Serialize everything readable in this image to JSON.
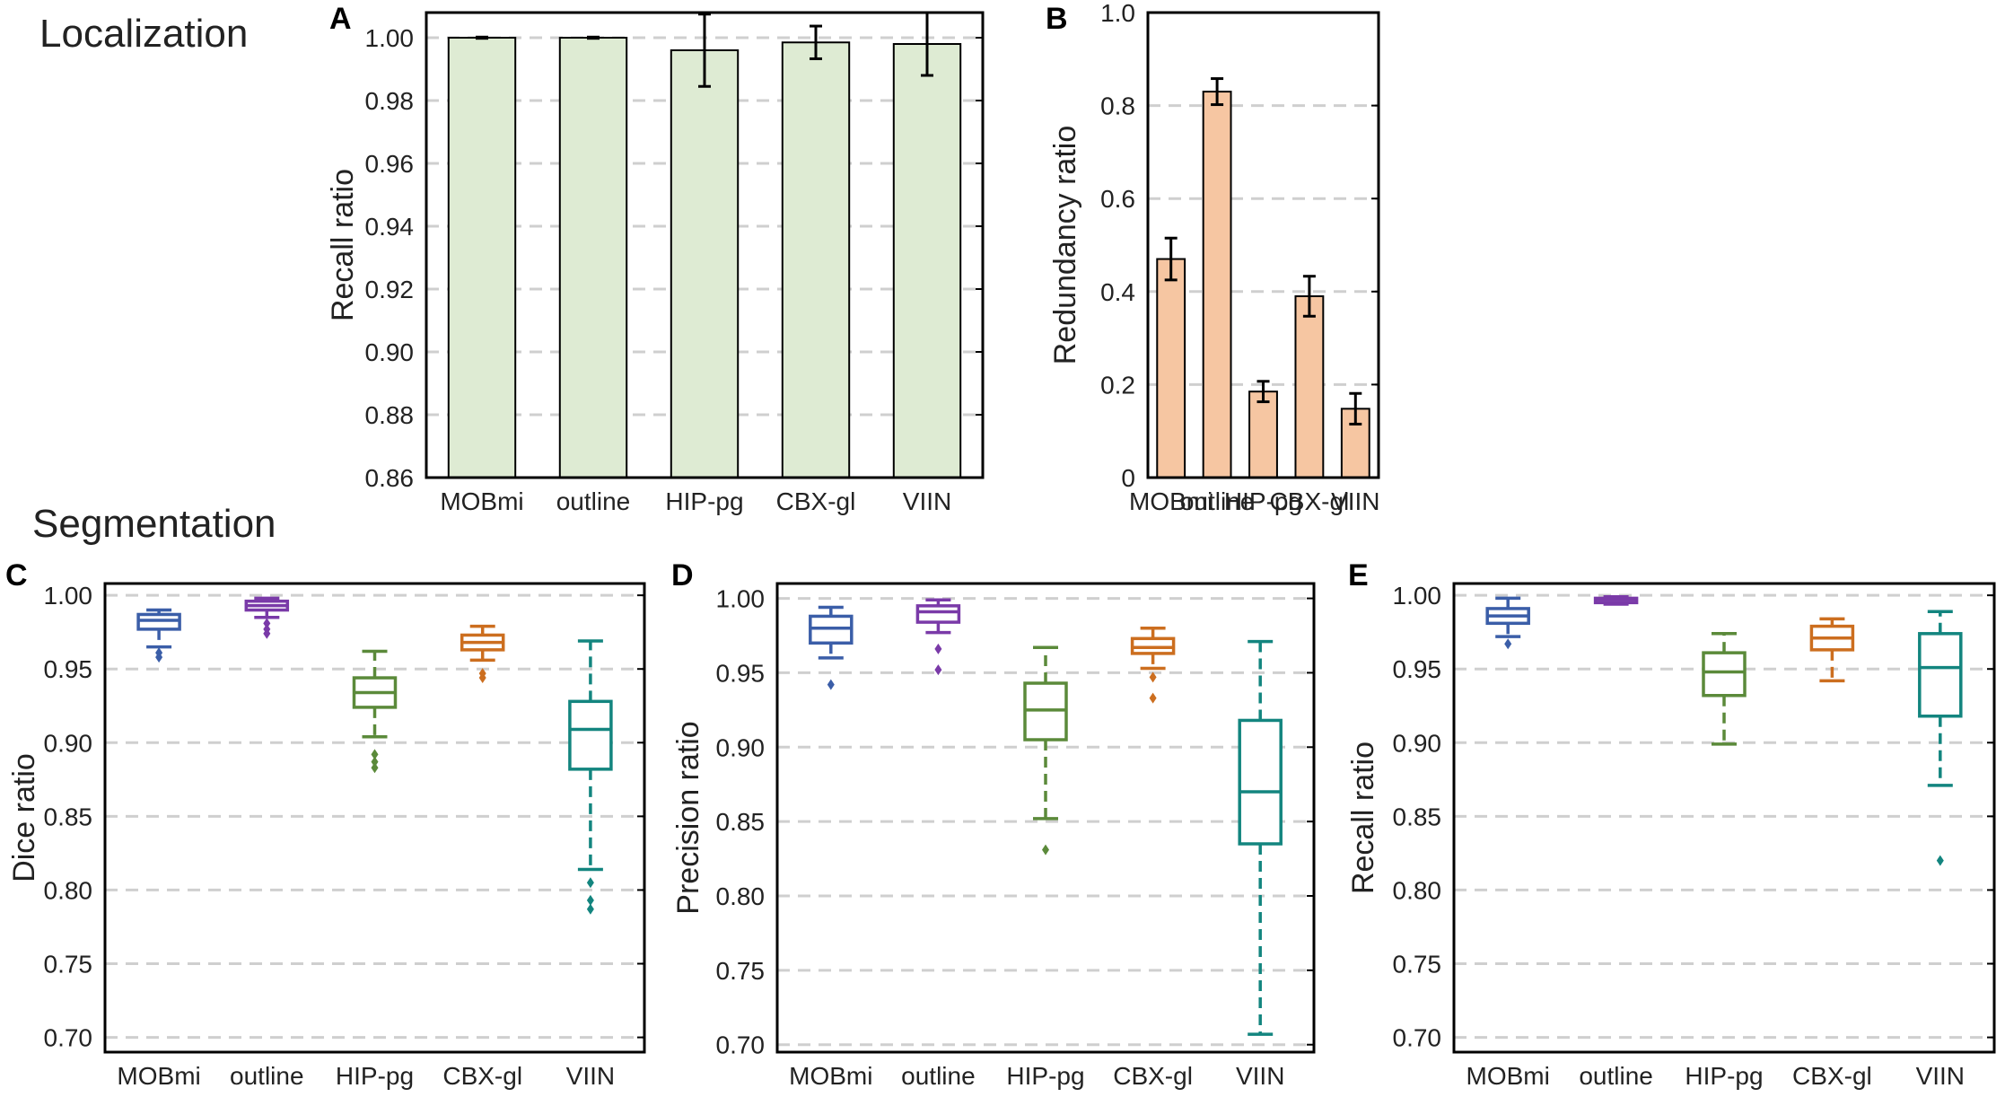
{
  "sections": {
    "localization": "Localization",
    "segmentation": "Segmentation"
  },
  "colors": {
    "bar_green": "#deebd3",
    "bar_orange": "#f6c6a2",
    "grid": "#cfcfcf",
    "mobmi": "#3b5ea8",
    "outline": "#7a3aa8",
    "hip": "#5b8a3a",
    "cbx": "#cc6e1f",
    "viin": "#13857f"
  },
  "chart_data": [
    {
      "id": "A",
      "panel_label": "A",
      "type": "bar",
      "title": "",
      "xlabel": "",
      "ylabel": "Recall ratio",
      "categories": [
        "MOBmi",
        "outline",
        "HIP-pg",
        "CBX-gl",
        "VIIN"
      ],
      "values": [
        1.0,
        1.0,
        0.996,
        0.9985,
        0.998
      ],
      "errors": [
        0.0002,
        0.0002,
        0.0115,
        0.0052,
        0.01
      ],
      "ylim": [
        0.86,
        1.008
      ],
      "yticks": [
        0.86,
        0.88,
        0.9,
        0.92,
        0.94,
        0.96,
        0.98,
        1.0
      ],
      "ytick_labels": [
        "0.86",
        "0.88",
        "0.90",
        "0.92",
        "0.94",
        "0.96",
        "0.98",
        "1.00"
      ],
      "grid": "horizontal dashed",
      "bar_color": "#deebd3"
    },
    {
      "id": "B",
      "panel_label": "B",
      "type": "bar",
      "title": "",
      "xlabel": "",
      "ylabel": "Redundancy ratio",
      "categories": [
        "MOBmi",
        "outline",
        "HIP-pg",
        "CBX-gl",
        "VIIN"
      ],
      "values": [
        0.47,
        0.83,
        0.185,
        0.39,
        0.148
      ],
      "errors": [
        0.045,
        0.028,
        0.022,
        0.043,
        0.033
      ],
      "ylim": [
        0,
        1.0
      ],
      "yticks": [
        0,
        0.2,
        0.4,
        0.6,
        0.8,
        1.0
      ],
      "ytick_labels": [
        "0",
        "0.2",
        "0.4",
        "0.6",
        "0.8",
        "1.0"
      ],
      "grid": "horizontal dashed",
      "bar_color": "#f6c6a2"
    },
    {
      "id": "C",
      "panel_label": "C",
      "type": "box",
      "title": "",
      "xlabel": "",
      "ylabel": "Dice ratio",
      "categories": [
        "MOBmi",
        "outline",
        "HIP-pg",
        "CBX-gl",
        "VIIN"
      ],
      "colors": [
        "#3b5ea8",
        "#7a3aa8",
        "#5b8a3a",
        "#cc6e1f",
        "#13857f"
      ],
      "boxes": [
        {
          "whislo": 0.965,
          "q1": 0.977,
          "med": 0.983,
          "q3": 0.987,
          "whishi": 0.99,
          "fliers": [
            0.961,
            0.958
          ]
        },
        {
          "whislo": 0.985,
          "q1": 0.99,
          "med": 0.993,
          "q3": 0.996,
          "whishi": 0.998,
          "fliers": [
            0.981,
            0.977,
            0.974
          ]
        },
        {
          "whislo": 0.904,
          "q1": 0.924,
          "med": 0.934,
          "q3": 0.944,
          "whishi": 0.962,
          "fliers": [
            0.892,
            0.887,
            0.883
          ]
        },
        {
          "whislo": 0.956,
          "q1": 0.963,
          "med": 0.968,
          "q3": 0.973,
          "whishi": 0.979,
          "fliers": [
            0.947,
            0.944
          ]
        },
        {
          "whislo": 0.814,
          "q1": 0.882,
          "med": 0.909,
          "q3": 0.928,
          "whishi": 0.969,
          "fliers": [
            0.805,
            0.793,
            0.787
          ]
        }
      ],
      "ylim": [
        0.69,
        1.008
      ],
      "yticks": [
        0.7,
        0.75,
        0.8,
        0.85,
        0.9,
        0.95,
        1.0
      ],
      "ytick_labels": [
        "0.70",
        "0.75",
        "0.80",
        "0.85",
        "0.90",
        "0.95",
        "1.00"
      ],
      "grid": "horizontal dashed"
    },
    {
      "id": "D",
      "panel_label": "D",
      "type": "box",
      "title": "",
      "xlabel": "",
      "ylabel": "Precision ratio",
      "categories": [
        "MOBmi",
        "outline",
        "HIP-pg",
        "CBX-gl",
        "VIIN"
      ],
      "colors": [
        "#3b5ea8",
        "#7a3aa8",
        "#5b8a3a",
        "#cc6e1f",
        "#13857f"
      ],
      "boxes": [
        {
          "whislo": 0.96,
          "q1": 0.97,
          "med": 0.98,
          "q3": 0.988,
          "whishi": 0.994,
          "fliers": [
            0.942
          ]
        },
        {
          "whislo": 0.977,
          "q1": 0.984,
          "med": 0.991,
          "q3": 0.995,
          "whishi": 0.999,
          "fliers": [
            0.966,
            0.952
          ]
        },
        {
          "whislo": 0.852,
          "q1": 0.905,
          "med": 0.925,
          "q3": 0.943,
          "whishi": 0.967,
          "fliers": [
            0.831
          ]
        },
        {
          "whislo": 0.953,
          "q1": 0.963,
          "med": 0.967,
          "q3": 0.973,
          "whishi": 0.98,
          "fliers": [
            0.947,
            0.933
          ]
        },
        {
          "whislo": 0.707,
          "q1": 0.835,
          "med": 0.87,
          "q3": 0.918,
          "whishi": 0.971,
          "fliers": []
        }
      ],
      "ylim": [
        0.695,
        1.01
      ],
      "yticks": [
        0.7,
        0.75,
        0.8,
        0.85,
        0.9,
        0.95,
        1.0
      ],
      "ytick_labels": [
        "0.70",
        "0.75",
        "0.80",
        "0.85",
        "0.90",
        "0.95",
        "1.00"
      ],
      "grid": "horizontal dashed"
    },
    {
      "id": "E",
      "panel_label": "E",
      "type": "box",
      "title": "",
      "xlabel": "",
      "ylabel": "Recall ratio",
      "categories": [
        "MOBmi",
        "outline",
        "HIP-pg",
        "CBX-gl",
        "VIIN"
      ],
      "colors": [
        "#3b5ea8",
        "#7a3aa8",
        "#5b8a3a",
        "#cc6e1f",
        "#13857f"
      ],
      "boxes": [
        {
          "whislo": 0.972,
          "q1": 0.981,
          "med": 0.986,
          "q3": 0.991,
          "whishi": 0.998,
          "fliers": [
            0.967
          ]
        },
        {
          "whislo": 0.994,
          "q1": 0.995,
          "med": 0.997,
          "q3": 0.998,
          "whishi": 0.999,
          "fliers": []
        },
        {
          "whislo": 0.899,
          "q1": 0.932,
          "med": 0.948,
          "q3": 0.961,
          "whishi": 0.974,
          "fliers": []
        },
        {
          "whislo": 0.942,
          "q1": 0.963,
          "med": 0.971,
          "q3": 0.979,
          "whishi": 0.984,
          "fliers": []
        },
        {
          "whislo": 0.871,
          "q1": 0.918,
          "med": 0.951,
          "q3": 0.974,
          "whishi": 0.989,
          "fliers": [
            0.82
          ]
        }
      ],
      "ylim": [
        0.69,
        1.008
      ],
      "yticks": [
        0.7,
        0.75,
        0.8,
        0.85,
        0.9,
        0.95,
        1.0
      ],
      "ytick_labels": [
        "0.70",
        "0.75",
        "0.80",
        "0.85",
        "0.90",
        "0.95",
        "1.00"
      ],
      "grid": "horizontal dashed"
    }
  ]
}
